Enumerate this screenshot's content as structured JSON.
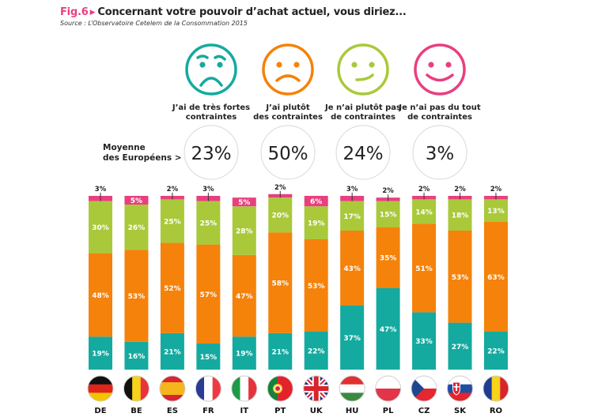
{
  "header": {
    "fig_label": "Fig.6",
    "title": "Concernant votre pouvoir d’achat actuel, vous diriez...",
    "source": "Source : L’Observatoire Cetelem de la Consommation 2015"
  },
  "legend": {
    "average_label_line1": "Moyenne",
    "average_label_line2": "des Européens >",
    "items": [
      {
        "icon": "very-sad-face-icon",
        "line1": "J’ai de très fortes",
        "line2": "contraintes",
        "average": "23%",
        "color": "#14aaa0"
      },
      {
        "icon": "sad-face-icon",
        "line1": "J’ai plutôt",
        "line2": "des contraintes",
        "average": "50%",
        "color": "#f5820a"
      },
      {
        "icon": "slight-smile-face-icon",
        "line1": "Je n’ai plutôt pas",
        "line2": "de contraintes",
        "average": "24%",
        "color": "#a9c93a"
      },
      {
        "icon": "smile-face-icon",
        "line1": "Je n’ai pas du tout",
        "line2": "de contraintes",
        "average": "3%",
        "color": "#e8407f"
      }
    ]
  },
  "chart_data": {
    "type": "bar",
    "stacked": true,
    "title": "Concernant votre pouvoir d’achat actuel, vous diriez...",
    "xlabel": "",
    "ylabel": "",
    "ylim": [
      0,
      100
    ],
    "categories": [
      "DE",
      "BE",
      "ES",
      "FR",
      "IT",
      "PT",
      "UK",
      "HU",
      "PL",
      "CZ",
      "SK",
      "RO"
    ],
    "series": [
      {
        "name": "J’ai de très fortes contraintes",
        "color": "#14aaa0",
        "values": [
          19,
          16,
          21,
          15,
          19,
          21,
          22,
          37,
          47,
          33,
          27,
          22
        ]
      },
      {
        "name": "J’ai plutôt des contraintes",
        "color": "#f5820a",
        "values": [
          48,
          53,
          52,
          57,
          47,
          58,
          53,
          43,
          35,
          51,
          53,
          63
        ]
      },
      {
        "name": "Je n’ai plutôt pas de contraintes",
        "color": "#a9c93a",
        "values": [
          30,
          26,
          25,
          25,
          28,
          20,
          19,
          17,
          15,
          14,
          18,
          13
        ]
      },
      {
        "name": "Je n’ai pas du tout de contraintes",
        "color": "#e8407f",
        "values": [
          3,
          5,
          2,
          3,
          5,
          2,
          6,
          3,
          2,
          2,
          2,
          2
        ]
      }
    ],
    "european_average": [
      23,
      50,
      24,
      3
    ],
    "flags": [
      "germany-flag-icon",
      "belgium-flag-icon",
      "spain-flag-icon",
      "france-flag-icon",
      "italy-flag-icon",
      "portugal-flag-icon",
      "uk-flag-icon",
      "hungary-flag-icon",
      "poland-flag-icon",
      "czech-flag-icon",
      "slovakia-flag-icon",
      "romania-flag-icon"
    ]
  }
}
